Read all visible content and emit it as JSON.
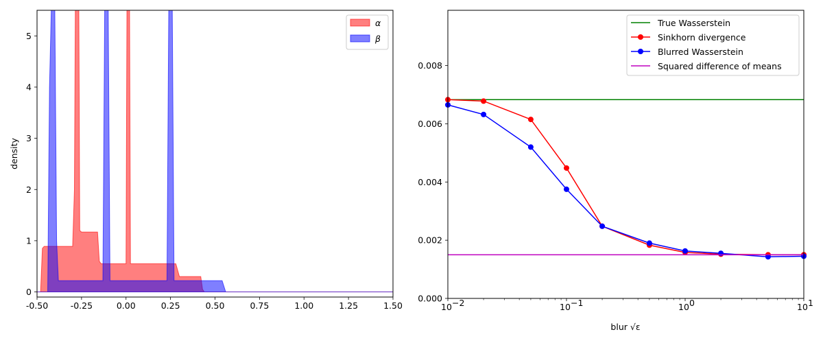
{
  "colors": {
    "alpha": "#ff0000",
    "beta": "#0000ff",
    "true_w": "#008000",
    "sinkhorn": "#ff0000",
    "blurred": "#0000ff",
    "means": "#bf00bf"
  },
  "chart_data": [
    {
      "type": "area",
      "ylabel": "density",
      "xlim": [
        -0.5,
        1.5
      ],
      "ylim": [
        -0.1,
        5.5
      ],
      "x_ticks": [
        "-0.50",
        "-0.25",
        "0.00",
        "0.25",
        "0.50",
        "0.75",
        "1.00",
        "1.25",
        "1.50"
      ],
      "y_ticks": [
        "0",
        "1",
        "2",
        "3",
        "4",
        "5"
      ],
      "legend_position": "top-right",
      "series": [
        {
          "name": "α",
          "points": [
            [
              -0.5,
              0
            ],
            [
              -0.48,
              0
            ],
            [
              -0.47,
              0.85
            ],
            [
              -0.46,
              0.89
            ],
            [
              -0.3,
              0.89
            ],
            [
              -0.29,
              2
            ],
            [
              -0.285,
              5.5
            ],
            [
              -0.265,
              5.5
            ],
            [
              -0.26,
              1.2
            ],
            [
              -0.25,
              1.17
            ],
            [
              -0.16,
              1.17
            ],
            [
              -0.15,
              0.6
            ],
            [
              -0.14,
              0.55
            ],
            [
              0.0,
              0.55
            ],
            [
              0.005,
              5.5
            ],
            [
              0.02,
              5.5
            ],
            [
              0.025,
              0.55
            ],
            [
              0.28,
              0.55
            ],
            [
              0.3,
              0.3
            ],
            [
              0.42,
              0.3
            ],
            [
              0.43,
              0.05
            ],
            [
              0.44,
              0
            ],
            [
              1.5,
              0
            ]
          ]
        },
        {
          "name": "β",
          "points": [
            [
              -0.5,
              0
            ],
            [
              -0.44,
              0
            ],
            [
              -0.43,
              4
            ],
            [
              -0.42,
              5.5
            ],
            [
              -0.4,
              5.5
            ],
            [
              -0.39,
              1
            ],
            [
              -0.38,
              0.22
            ],
            [
              -0.13,
              0.22
            ],
            [
              -0.12,
              5.5
            ],
            [
              -0.1,
              5.5
            ],
            [
              -0.09,
              0.22
            ],
            [
              0.23,
              0.22
            ],
            [
              0.24,
              5.5
            ],
            [
              0.26,
              5.5
            ],
            [
              0.27,
              0.22
            ],
            [
              0.54,
              0.22
            ],
            [
              0.56,
              0
            ],
            [
              1.5,
              0
            ]
          ]
        }
      ]
    },
    {
      "type": "line",
      "xlabel": "blur √ε",
      "xscale": "log",
      "xlim": [
        0.01,
        10
      ],
      "ylim": [
        0,
        0.0099
      ],
      "x_ticks": [
        "10^-2",
        "10^-1",
        "10^0",
        "10^1"
      ],
      "y_ticks": [
        "0.000",
        "0.002",
        "0.004",
        "0.006",
        "0.008"
      ],
      "legend_position": "top-right",
      "x": [
        0.01,
        0.02,
        0.05,
        0.1,
        0.2,
        0.5,
        1,
        2,
        5,
        10
      ],
      "series": [
        {
          "name": "True Wasserstein",
          "values": [
            0.00683,
            0.00683,
            0.00683,
            0.00683,
            0.00683,
            0.00683,
            0.00683,
            0.00683,
            0.00683,
            0.00683
          ]
        },
        {
          "name": "Sinkhorn divergence",
          "values": [
            0.00683,
            0.00678,
            0.00615,
            0.00448,
            0.00248,
            0.00183,
            0.00158,
            0.00152,
            0.0015,
            0.0015
          ]
        },
        {
          "name": "Blurred Wasserstein",
          "values": [
            0.00665,
            0.00632,
            0.0052,
            0.00375,
            0.00248,
            0.0019,
            0.00163,
            0.00155,
            0.00143,
            0.00145
          ]
        },
        {
          "name": "Squared difference of means",
          "values": [
            0.0015,
            0.0015,
            0.0015,
            0.0015,
            0.0015,
            0.0015,
            0.0015,
            0.0015,
            0.0015,
            0.0015
          ]
        }
      ]
    }
  ]
}
